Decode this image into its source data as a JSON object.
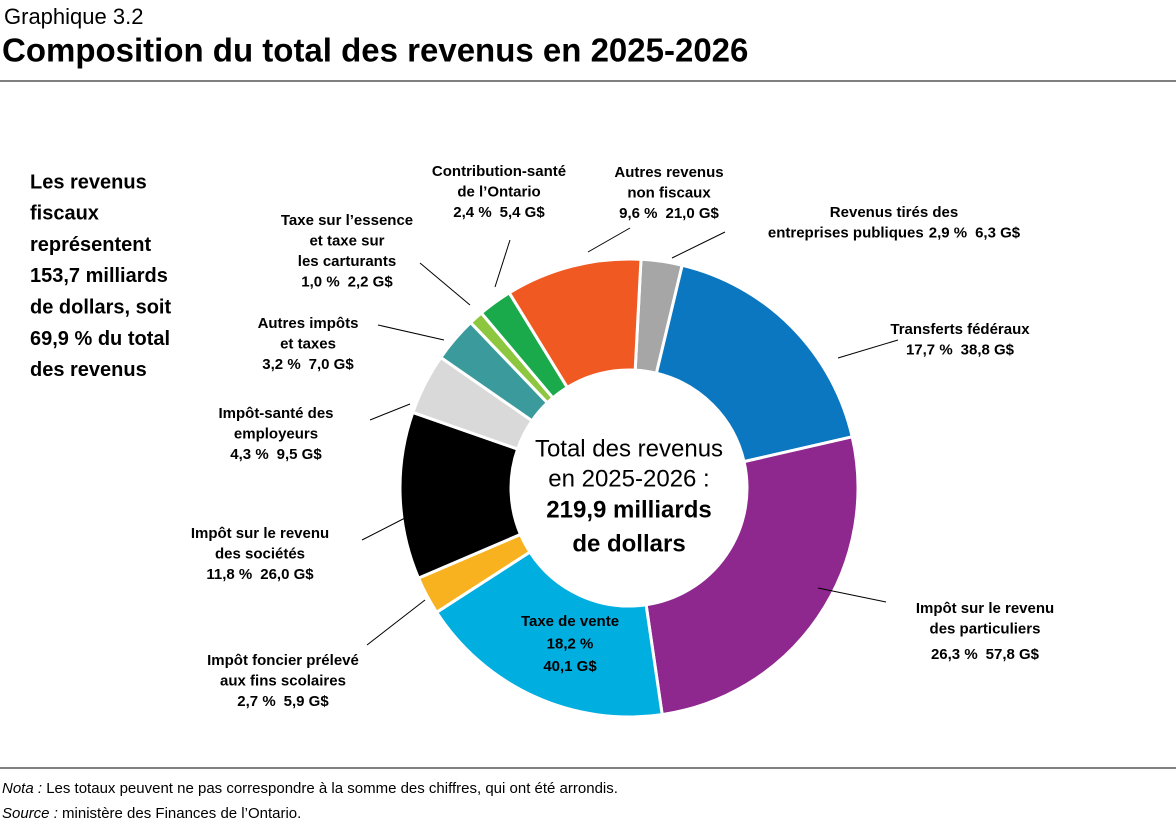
{
  "header": {
    "kicker": "Graphique 3.2",
    "title": "Composition du total des revenus en 2025-2026"
  },
  "side_text": [
    "Les revenus",
    "fiscaux",
    "représentent",
    "153,7 milliards",
    "de dollars, soit",
    "69,9 % du total",
    "des revenus"
  ],
  "chart_data": {
    "type": "donut",
    "categories": [
      [
        "Revenus tirés des",
        "entreprises publiques"
      ],
      [
        "Transferts fédéraux"
      ],
      [
        "Impôt sur le revenu",
        "des particuliers"
      ],
      [
        "Taxe de vente"
      ],
      [
        "Impôt foncier prélevé",
        "aux fins scolaires"
      ],
      [
        "Impôt sur le revenu",
        "des sociétés"
      ],
      [
        "Impôt-santé des",
        "employeurs"
      ],
      [
        "Autres impôts",
        "et taxes"
      ],
      [
        "Taxe sur l’essence",
        "et taxe sur",
        "les carturants"
      ],
      [
        "Contribution-santé",
        "de l’Ontario"
      ],
      [
        "Autres revenus",
        "non fiscaux"
      ]
    ],
    "values": [
      2.9,
      17.7,
      26.3,
      18.2,
      2.7,
      11.8,
      4.3,
      3.2,
      1.0,
      2.4,
      9.6
    ],
    "value_labels": [
      "2,9 %",
      "17,7 %",
      "26,3 %",
      "18,2 %",
      "2,7 %",
      "11,8 %",
      "4,3 %",
      "3,2 %",
      "1,0 %",
      "2,4 %",
      "9,6 %"
    ],
    "amounts": [
      6.3,
      38.8,
      57.8,
      40.1,
      5.9,
      26.0,
      9.5,
      7.0,
      2.2,
      5.4,
      21.0
    ],
    "amount_labels": [
      "6,3 G$",
      "38,8 G$",
      "57,8 G$",
      "40,1 G$",
      "5,9 G$",
      "26,0 G$",
      "9,5 G$",
      "7,0 G$",
      "2,2 G$",
      "5,4 G$",
      "21,0 G$"
    ],
    "colors": [
      "#a6a6a6",
      "#0b77c0",
      "#8e278e",
      "#00aee0",
      "#f9b21f",
      "#000000",
      "#d9d9d9",
      "#3b9a9c",
      "#8dc63f",
      "#1aaa4b",
      "#f05a22"
    ],
    "center_text": [
      "Total des revenus",
      "en 2025-2026 :",
      "219,9 milliards",
      "de dollars"
    ]
  },
  "footer": {
    "note": {
      "label": "Nota :",
      "text": " Les totaux peuvent ne pas correspondre à la somme des chiffres, qui ont été arrondis."
    },
    "source": {
      "label": "Source :",
      "text": " ministère des Finances de l’Ontario."
    }
  }
}
